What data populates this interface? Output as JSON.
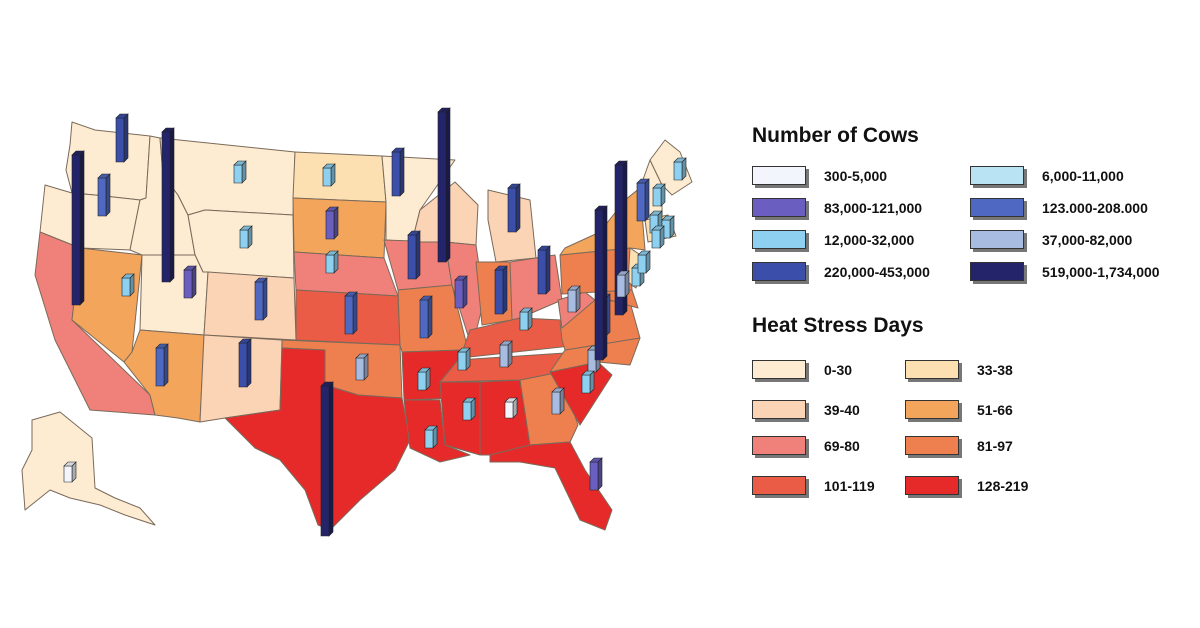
{
  "legend_cows": {
    "title": "Number of Cows",
    "items": [
      {
        "label": "300-5,000",
        "color": "#f2f6fc"
      },
      {
        "label": "6,000-11,000",
        "color": "#b9e2f2"
      },
      {
        "label": "83,000-121,000",
        "color": "#6a5fc0"
      },
      {
        "label": "123.000-208.000",
        "color": "#4f68c2"
      },
      {
        "label": "12,000-32,000",
        "color": "#8ed0f0"
      },
      {
        "label": "37,000-82,000",
        "color": "#a8bbe0"
      },
      {
        "label": "220,000-453,000",
        "color": "#3a4eaa"
      },
      {
        "label": "519,000-1,734,000",
        "color": "#24246a"
      }
    ]
  },
  "legend_heat": {
    "title": "Heat Stress Days",
    "items": [
      {
        "label": "0-30",
        "color": "#fdecd2"
      },
      {
        "label": "33-38",
        "color": "#fde0b2"
      },
      {
        "label": "39-40",
        "color": "#fbd3b5"
      },
      {
        "label": "51-66",
        "color": "#f3a55c"
      },
      {
        "label": "69-80",
        "color": "#f0817a"
      },
      {
        "label": "81-97",
        "color": "#ee8050"
      },
      {
        "label": "101-119",
        "color": "#ea5c45"
      },
      {
        "label": "128-219",
        "color": "#e62a2a"
      }
    ]
  }
}
